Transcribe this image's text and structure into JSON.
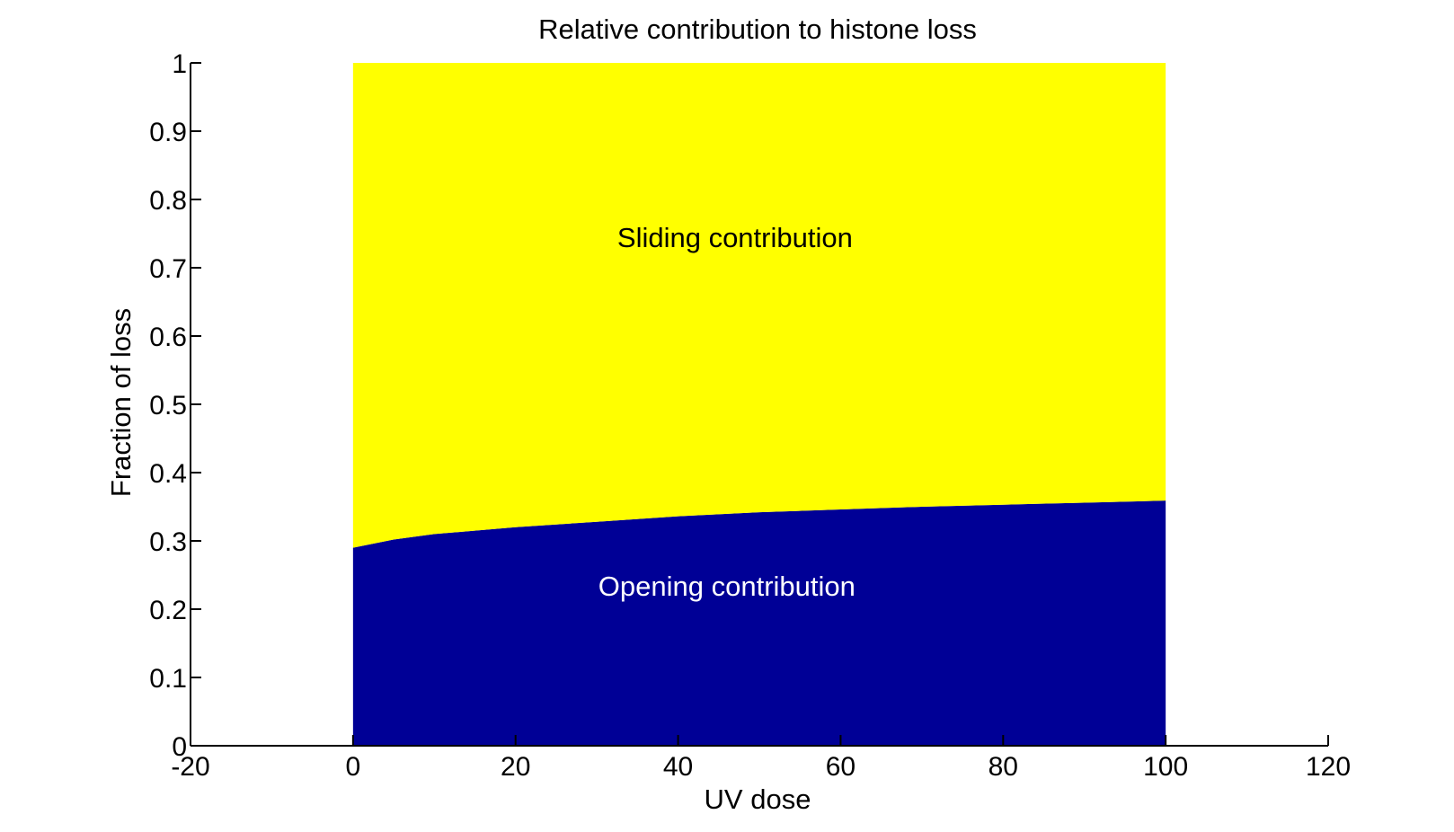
{
  "chart_data": {
    "type": "area",
    "title": "Relative contribution to histone loss",
    "xlabel": "UV dose",
    "ylabel": "Fraction of loss",
    "xlim": [
      -20,
      120
    ],
    "ylim": [
      0,
      1
    ],
    "xticks": [
      -20,
      0,
      20,
      40,
      60,
      80,
      100,
      120
    ],
    "yticks": [
      0,
      0.1,
      0.2,
      0.3,
      0.4,
      0.5,
      0.6,
      0.7,
      0.8,
      0.9,
      1
    ],
    "grid": false,
    "stacked": true,
    "x": [
      0,
      5,
      10,
      20,
      30,
      40,
      50,
      60,
      70,
      80,
      90,
      100
    ],
    "series": [
      {
        "name": "Opening contribution",
        "color": "#000096",
        "values": [
          0.29,
          0.302,
          0.31,
          0.32,
          0.328,
          0.336,
          0.342,
          0.346,
          0.35,
          0.353,
          0.356,
          0.359
        ]
      },
      {
        "name": "Sliding contribution",
        "color": "#FFFF00",
        "values": [
          0.71,
          0.698,
          0.69,
          0.68,
          0.672,
          0.664,
          0.658,
          0.654,
          0.65,
          0.647,
          0.644,
          0.641
        ]
      }
    ],
    "annotations": [
      {
        "text": "Sliding contribution",
        "x": 47,
        "y": 0.73,
        "color": "#000000"
      },
      {
        "text": "Opening contribution",
        "x": 46,
        "y": 0.22,
        "color": "#FFFFFF"
      }
    ]
  }
}
